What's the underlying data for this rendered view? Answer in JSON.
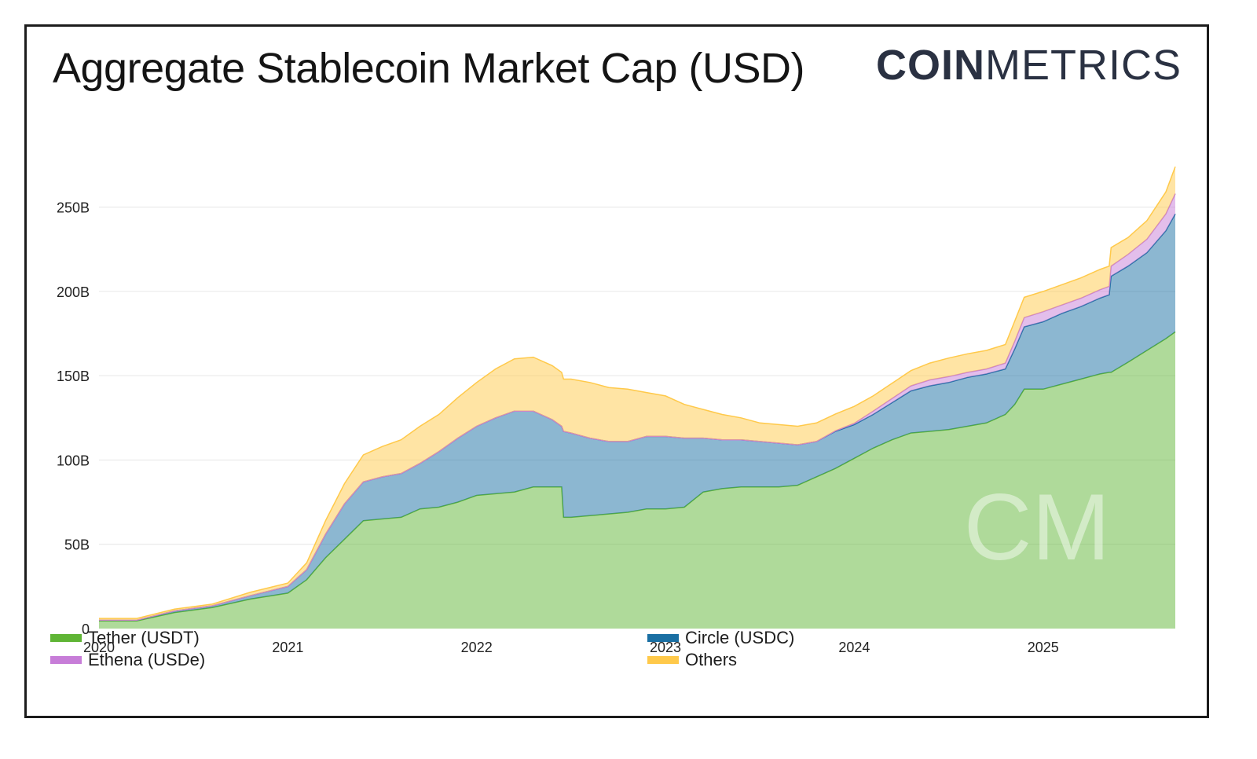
{
  "title": "Aggregate Stablecoin Market Cap (USD)",
  "brand": {
    "bold": "COIN",
    "light": "METRICS",
    "watermark": "CM"
  },
  "colors": {
    "usdt": "#5fb535",
    "usdc": "#1a6fa3",
    "usde": "#c77dd8",
    "others": "#ffc94a",
    "grid": "#e6e6e6",
    "axis_text": "#222222"
  },
  "chart_data": {
    "type": "area",
    "stacked": true,
    "title": "Aggregate Stablecoin Market Cap (USD)",
    "xlabel": "",
    "ylabel": "",
    "xlim": [
      2020.0,
      2025.7
    ],
    "ylim": [
      0,
      275
    ],
    "y_unit": "B",
    "yticks": [
      0,
      50,
      100,
      150,
      200,
      250
    ],
    "ytick_labels": [
      "0",
      "50B",
      "100B",
      "150B",
      "200B",
      "250B"
    ],
    "xticks": [
      2020,
      2021,
      2022,
      2023,
      2024,
      2025
    ],
    "xtick_labels": [
      "2020",
      "2021",
      "2022",
      "2023",
      "2024",
      "2025"
    ],
    "grid": true,
    "legend_position": "bottom",
    "x": [
      2020.0,
      2020.2,
      2020.4,
      2020.6,
      2020.8,
      2021.0,
      2021.1,
      2021.2,
      2021.3,
      2021.4,
      2021.5,
      2021.6,
      2021.7,
      2021.8,
      2021.9,
      2022.0,
      2022.1,
      2022.2,
      2022.3,
      2022.4,
      2022.45,
      2022.46,
      2022.5,
      2022.6,
      2022.7,
      2022.8,
      2022.9,
      2023.0,
      2023.1,
      2023.2,
      2023.3,
      2023.4,
      2023.5,
      2023.6,
      2023.7,
      2023.8,
      2023.9,
      2024.0,
      2024.1,
      2024.2,
      2024.3,
      2024.4,
      2024.5,
      2024.6,
      2024.7,
      2024.8,
      2024.85,
      2024.9,
      2025.0,
      2025.1,
      2025.2,
      2025.3,
      2025.35,
      2025.36,
      2025.45,
      2025.55,
      2025.65,
      2025.7
    ],
    "series": [
      {
        "name": "Tether (USDT)",
        "key": "usdt",
        "values": [
          4.5,
          4.5,
          9.5,
          12.5,
          17.5,
          21,
          29,
          42,
          53,
          64,
          65,
          66,
          71,
          72,
          75,
          79,
          80,
          81,
          84,
          84,
          84,
          66,
          66,
          67,
          68,
          69,
          71,
          71,
          72,
          81,
          83,
          84,
          84,
          84,
          85,
          90,
          95,
          101,
          107,
          112,
          116,
          117,
          118,
          120,
          122,
          127,
          133,
          142,
          142,
          145,
          148,
          151,
          152,
          152,
          158,
          165,
          172,
          176
        ]
      },
      {
        "name": "Circle (USDC)",
        "key": "usdc",
        "values": [
          0.5,
          0.5,
          1,
          1,
          2,
          4,
          6,
          14,
          21,
          23,
          25,
          26,
          27,
          33,
          38,
          41,
          45,
          48,
          45,
          40,
          36,
          51,
          50,
          46,
          43,
          42,
          43,
          43,
          41,
          32,
          29,
          28,
          27,
          26,
          24,
          21,
          22,
          20,
          20,
          22,
          25,
          27,
          28,
          29,
          29,
          27,
          33,
          37,
          40,
          42,
          43,
          45,
          46,
          57,
          57,
          58,
          64,
          70
        ]
      },
      {
        "name": "Ethena (USDe)",
        "key": "usde",
        "values": [
          0,
          0,
          0,
          0,
          0,
          0,
          0,
          0,
          0,
          0,
          0,
          0,
          0,
          0,
          0,
          0,
          0,
          0,
          0,
          0,
          0,
          0,
          0,
          0,
          0,
          0,
          0,
          0,
          0,
          0,
          0,
          0,
          0,
          0,
          0,
          0,
          0.3,
          0.8,
          2,
          2.5,
          3,
          3.5,
          3.5,
          3,
          3,
          3.5,
          4.5,
          5.5,
          6,
          5,
          5,
          5,
          5,
          6,
          7,
          8,
          10,
          12
        ]
      },
      {
        "name": "Others",
        "key": "others",
        "values": [
          1,
          1,
          1,
          1,
          2,
          2,
          4,
          8,
          12,
          16,
          18,
          20,
          22,
          22,
          24,
          26,
          29,
          31,
          32,
          32,
          32,
          31,
          32,
          33,
          32,
          31,
          26,
          24,
          20,
          17,
          15,
          13,
          11,
          11,
          11,
          11,
          10,
          10,
          9,
          9,
          9,
          10,
          11,
          11,
          11,
          11,
          12,
          12,
          12,
          12,
          12,
          12,
          12,
          11,
          10,
          11,
          13,
          16
        ]
      }
    ]
  },
  "legend": [
    {
      "label": "Tether (USDT)",
      "key": "usdt"
    },
    {
      "label": "Ethena (USDe)",
      "key": "usde"
    },
    {
      "label": "Circle (USDC)",
      "key": "usdc"
    },
    {
      "label": "Others",
      "key": "others"
    }
  ]
}
